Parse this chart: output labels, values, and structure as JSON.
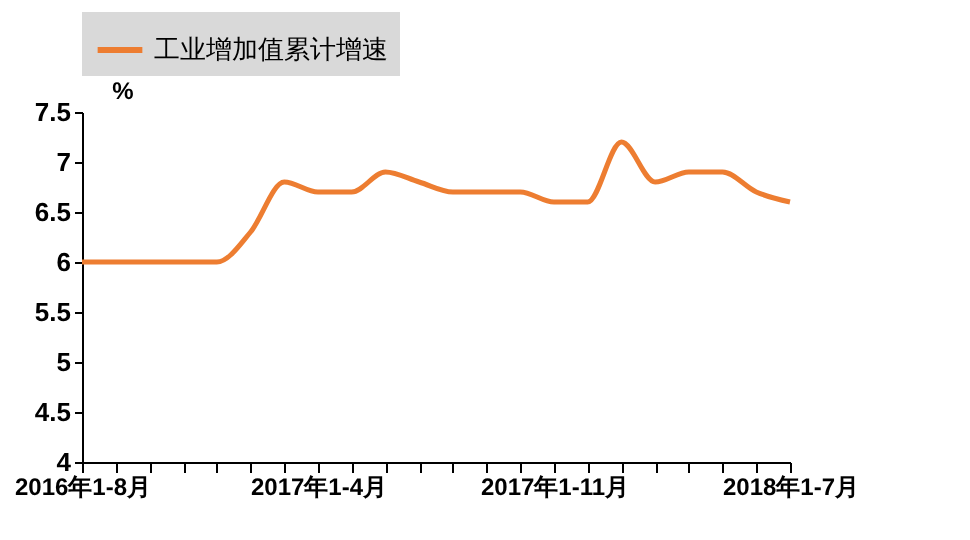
{
  "chart_data": {
    "type": "line",
    "ylabel": "%",
    "categories": [
      "2016年1-8月",
      null,
      null,
      null,
      null,
      null,
      null,
      "2017年1-4月",
      null,
      null,
      null,
      null,
      null,
      null,
      "2017年1-11月",
      null,
      null,
      null,
      null,
      null,
      null,
      "2018年1-7月"
    ],
    "series": [
      {
        "name": "工业增加值累计增速",
        "color": "#ed7d31",
        "values": [
          6.0,
          6.0,
          6.0,
          6.0,
          6.0,
          6.3,
          6.8,
          6.7,
          6.7,
          6.9,
          6.8,
          6.7,
          6.7,
          6.7,
          6.6,
          6.6,
          7.2,
          6.8,
          6.9,
          6.9,
          6.7,
          6.6
        ]
      }
    ],
    "ylim": [
      4,
      7.5
    ],
    "yticks": [
      4,
      4.5,
      5,
      5.5,
      6,
      6.5,
      7,
      7.5
    ],
    "grid": false,
    "legend": "top",
    "marker": "none",
    "line_style": "solid"
  }
}
